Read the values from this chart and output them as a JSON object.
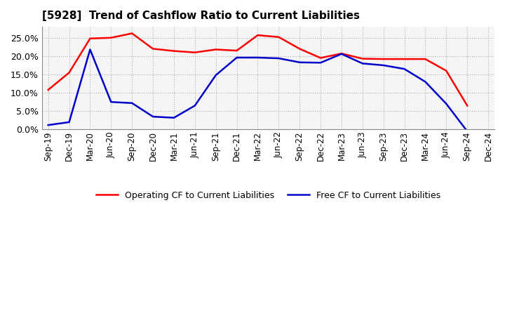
{
  "title": "[5928]  Trend of Cashflow Ratio to Current Liabilities",
  "x_labels": [
    "Sep-19",
    "Dec-19",
    "Mar-20",
    "Jun-20",
    "Sep-20",
    "Dec-20",
    "Mar-21",
    "Jun-21",
    "Sep-21",
    "Dec-21",
    "Mar-22",
    "Jun-22",
    "Sep-22",
    "Dec-22",
    "Mar-23",
    "Jun-23",
    "Sep-23",
    "Dec-23",
    "Mar-24",
    "Jun-24",
    "Sep-24",
    "Dec-24"
  ],
  "operating_cf": [
    0.108,
    0.155,
    0.248,
    0.25,
    0.262,
    0.22,
    0.214,
    0.21,
    0.218,
    0.215,
    0.257,
    0.252,
    0.22,
    0.195,
    0.207,
    0.193,
    0.192,
    0.192,
    0.192,
    0.16,
    0.065,
    null
  ],
  "free_cf": [
    0.012,
    0.02,
    0.218,
    0.075,
    0.072,
    0.035,
    0.032,
    0.065,
    0.148,
    0.196,
    0.196,
    0.194,
    0.183,
    0.182,
    0.206,
    0.18,
    0.175,
    0.165,
    0.13,
    0.07,
    -0.005,
    null
  ],
  "ylim_min": 0.0,
  "ylim_max": 0.28,
  "yticks": [
    0.0,
    0.05,
    0.1,
    0.15,
    0.2,
    0.25
  ],
  "operating_color": "#ff0000",
  "free_color": "#0000cc",
  "grid_color": "#b0b0b0",
  "plot_bg_color": "#f5f5f5",
  "fig_bg_color": "#ffffff",
  "legend_labels": [
    "Operating CF to Current Liabilities",
    "Free CF to Current Liabilities"
  ]
}
